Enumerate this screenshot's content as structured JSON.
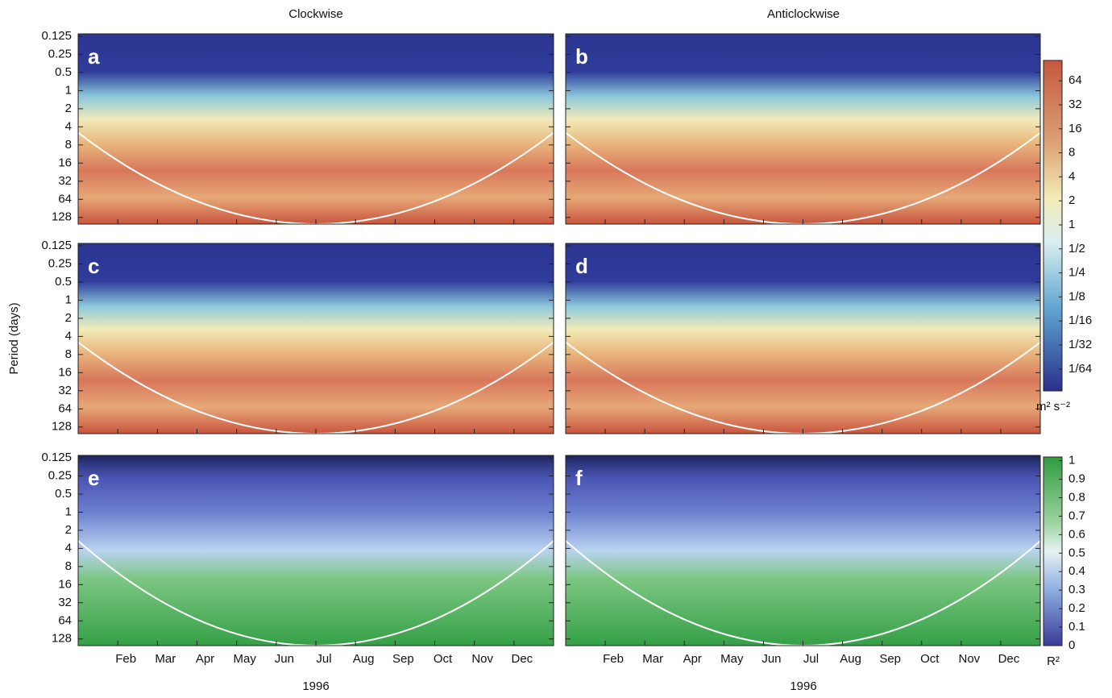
{
  "chart_data": {
    "type": "heatmap",
    "column_titles": [
      "Clockwise",
      "Anticlockwise"
    ],
    "panels": [
      {
        "label": "a"
      },
      {
        "label": "b"
      },
      {
        "label": "c"
      },
      {
        "label": "d"
      },
      {
        "label": "e"
      },
      {
        "label": "f"
      }
    ],
    "ylabel": "Period (days)",
    "log_y": true,
    "ylim": [
      0.114,
      165
    ],
    "yticks": [
      0.125,
      0.25,
      0.5,
      1,
      2,
      4,
      8,
      16,
      32,
      64,
      128
    ],
    "categories": [
      "Feb",
      "Mar",
      "Apr",
      "May",
      "Jun",
      "Jul",
      "Aug",
      "Sep",
      "Oct",
      "Nov",
      "Dec"
    ],
    "xlabel": "1996",
    "colorbars": [
      {
        "label": "m² s⁻²",
        "log": true,
        "lim": [
          0.0083,
          115
        ],
        "ticks": [
          64,
          32,
          16,
          8,
          4,
          2,
          1,
          {
            "value": 0.5,
            "label": "1/2"
          },
          {
            "value": 0.25,
            "label": "1/4"
          },
          {
            "value": 0.125,
            "label": "1/8"
          },
          {
            "value": 0.0625,
            "label": "1/16"
          },
          {
            "value": 0.03125,
            "label": "1/32"
          },
          {
            "value": 0.015625,
            "label": "1/64"
          }
        ]
      },
      {
        "label": "R²",
        "log": false,
        "lim": [
          0,
          1.02
        ],
        "ticks": [
          1,
          0.9,
          0.8,
          0.7,
          0.6,
          0.5,
          0.4,
          0.3,
          0.2,
          0.1,
          0
        ]
      }
    ]
  }
}
